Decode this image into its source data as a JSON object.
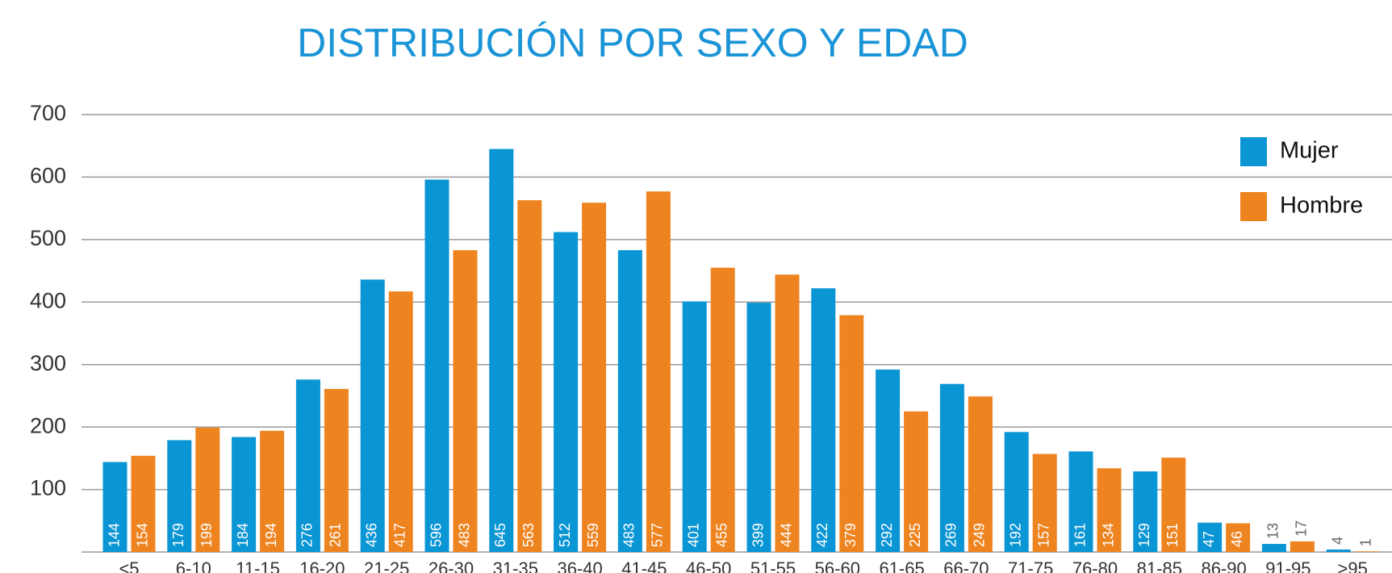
{
  "chart_data": {
    "type": "bar",
    "title": "DISTRIBUCIÓN POR SEXO Y EDAD",
    "categories": [
      "<5",
      "6-10",
      "11-15",
      "16-20",
      "21-25",
      "26-30",
      "31-35",
      "36-40",
      "41-45",
      "46-50",
      "51-55",
      "56-60",
      "61-65",
      "66-70",
      "71-75",
      "76-80",
      "81-85",
      "86-90",
      "91-95",
      ">95"
    ],
    "series": [
      {
        "name": "Mujer",
        "color": "#0a95d4",
        "values": [
          144,
          179,
          184,
          276,
          436,
          596,
          645,
          512,
          483,
          401,
          399,
          422,
          292,
          269,
          192,
          161,
          129,
          47,
          13,
          4
        ]
      },
      {
        "name": "Hombre",
        "color": "#ee8420",
        "values": [
          154,
          199,
          194,
          261,
          417,
          483,
          563,
          559,
          577,
          455,
          444,
          379,
          225,
          249,
          157,
          134,
          151,
          46,
          17,
          1
        ]
      }
    ],
    "ylim": [
      0,
      700
    ],
    "yticks": [
      100,
      200,
      300,
      400,
      500,
      600,
      700
    ],
    "grid": true,
    "legend": "upper right"
  }
}
